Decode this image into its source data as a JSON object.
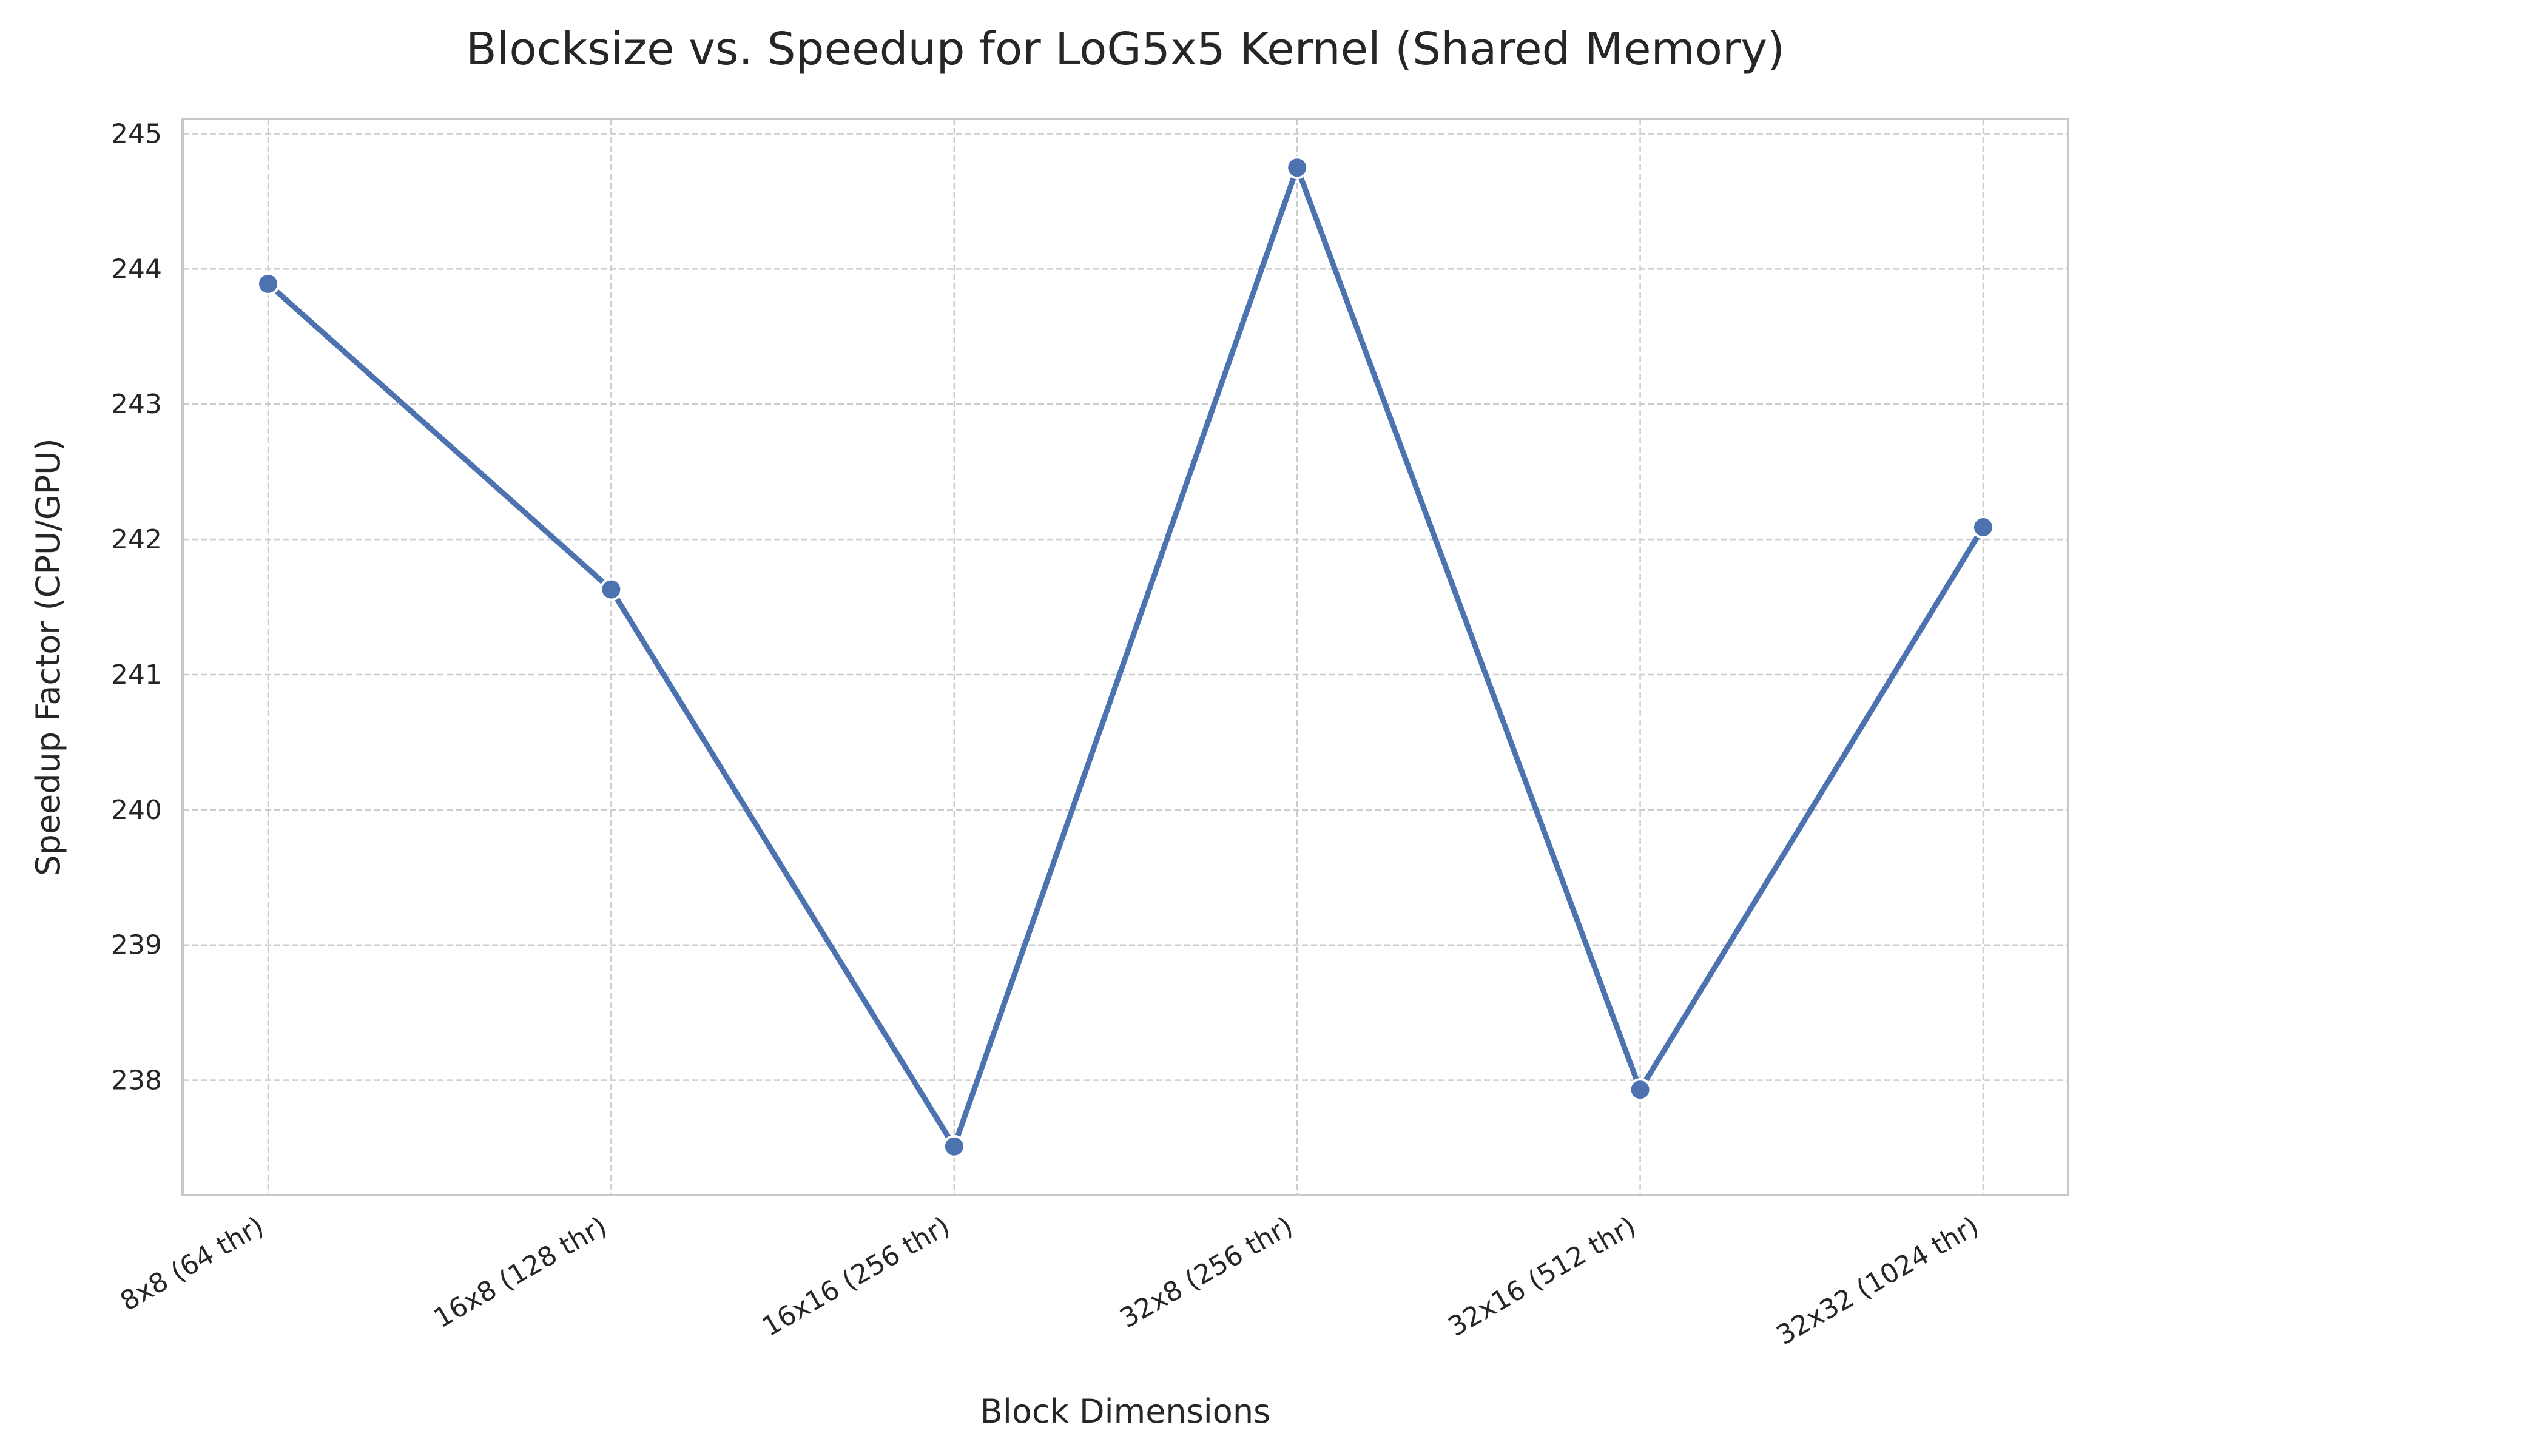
{
  "chart_data": {
    "type": "line",
    "title": "Blocksize vs. Speedup for LoG5x5 Kernel (Shared Memory)",
    "xlabel": "Block Dimensions",
    "ylabel": "Speedup Factor (CPU/GPU)",
    "categories": [
      "8x8 (64 thr)",
      "16x8 (128 thr)",
      "16x16 (256 thr)",
      "32x8 (256 thr)",
      "32x16 (512 thr)",
      "32x32 (1024 thr)"
    ],
    "series": [
      {
        "values": [
          243.89,
          241.63,
          237.51,
          244.75,
          237.93,
          242.09
        ],
        "color": "#4c72b0"
      }
    ],
    "yticks": [
      238,
      239,
      240,
      241,
      242,
      243,
      244,
      245
    ],
    "ylim": [
      237.15,
      245.11
    ],
    "grid": true,
    "legend": "none"
  }
}
